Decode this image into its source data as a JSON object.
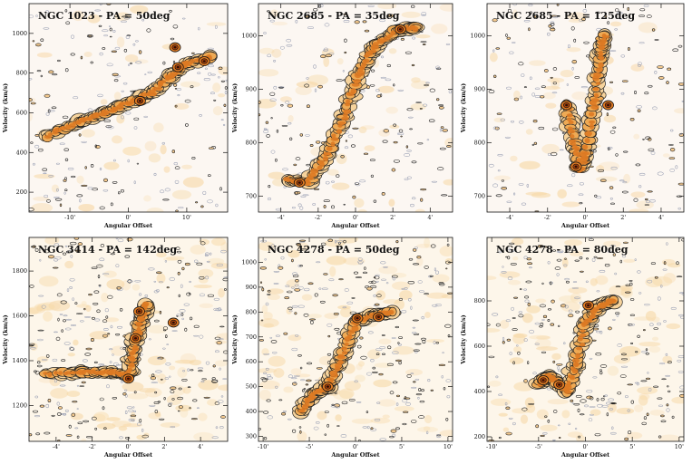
{
  "figure": {
    "xlabel": "Angular Offset",
    "ylabel": "Velocity (km/s)"
  },
  "chart_data": [
    {
      "type": "heatmap",
      "title": "NGC 1023 - PA = 50deg",
      "xlabel": "Angular Offset",
      "ylabel": "Velocity (km/s)",
      "x_ticks": [
        "-10'",
        "0'",
        "10'"
      ],
      "y_ticks": [
        200,
        400,
        600,
        800,
        1000
      ],
      "xlim": [
        -17,
        17
      ],
      "ylim": [
        100,
        1150
      ],
      "ridge": [
        [
          -14,
          480
        ],
        [
          -8,
          560
        ],
        [
          -4,
          600
        ],
        [
          0,
          650
        ],
        [
          4,
          700
        ],
        [
          7,
          780
        ],
        [
          10,
          850
        ],
        [
          14,
          880
        ]
      ],
      "peaks": [
        [
          8,
          930
        ],
        [
          8.5,
          830
        ],
        [
          13,
          860
        ],
        [
          2,
          660
        ]
      ],
      "noise_level": 0.5
    },
    {
      "type": "heatmap",
      "title": "NGC 2685 - PA = 35deg",
      "xlabel": "Angular Offset",
      "ylabel": "Velocity (km/s)",
      "x_ticks": [
        "-4'",
        "-2'",
        "0'",
        "2'",
        "4'"
      ],
      "y_ticks": [
        700,
        800,
        900,
        1000
      ],
      "xlim": [
        -5.2,
        5.2
      ],
      "ylim": [
        670,
        1060
      ],
      "ridge": [
        [
          -3.6,
          730
        ],
        [
          -2.5,
          725
        ],
        [
          -1.5,
          780
        ],
        [
          -0.6,
          850
        ],
        [
          0.2,
          930
        ],
        [
          1.0,
          980
        ],
        [
          2.2,
          1010
        ],
        [
          3.2,
          1015
        ]
      ],
      "peaks": [
        [
          -3.0,
          725
        ],
        [
          2.4,
          1012
        ]
      ],
      "noise_level": 0.5
    },
    {
      "type": "heatmap",
      "title": "NGC 2685 - PA = 125deg",
      "xlabel": "Angular Offset",
      "ylabel": "Velocity (km/s)",
      "x_ticks": [
        "-4'",
        "-2'",
        "0'",
        "2'",
        "4'"
      ],
      "y_ticks": [
        700,
        800,
        900,
        1000
      ],
      "xlim": [
        -5.2,
        5.2
      ],
      "ylim": [
        670,
        1060
      ],
      "ridge": [
        [
          -1.0,
          870
        ],
        [
          -0.6,
          800
        ],
        [
          -0.3,
          750
        ],
        [
          0.0,
          780
        ],
        [
          0.5,
          880
        ],
        [
          0.8,
          960
        ],
        [
          1.0,
          1000
        ]
      ],
      "peaks": [
        [
          -0.5,
          755
        ],
        [
          -1.0,
          870
        ],
        [
          1.2,
          870
        ]
      ],
      "noise_level": 0.5
    },
    {
      "type": "heatmap",
      "title": "NGC 3414 - PA = 142deg",
      "xlabel": "Angular Offset",
      "ylabel": "Velocity (km/s)",
      "x_ticks": [
        "-4'",
        "-2'",
        "0'",
        "2'",
        "4'"
      ],
      "y_ticks": [
        1200,
        1400,
        1600,
        1800
      ],
      "xlim": [
        -5.5,
        5.5
      ],
      "ylim": [
        1040,
        1950
      ],
      "ridge": [
        [
          -4.5,
          1340
        ],
        [
          -2.5,
          1350
        ],
        [
          -1.0,
          1350
        ],
        [
          0.0,
          1330
        ],
        [
          0.3,
          1450
        ],
        [
          0.6,
          1560
        ],
        [
          1.0,
          1650
        ]
      ],
      "peaks": [
        [
          0.0,
          1320
        ],
        [
          0.4,
          1500
        ],
        [
          0.6,
          1620
        ],
        [
          2.5,
          1570
        ]
      ],
      "noise_level": 1.0
    },
    {
      "type": "heatmap",
      "title": "NGC 4278 - PA = 50deg",
      "xlabel": "Angular Offset",
      "ylabel": "Velocity (km/s)",
      "x_ticks": [
        "-10'",
        "-5'",
        "0'",
        "5'",
        "10'"
      ],
      "y_ticks": [
        300,
        400,
        500,
        600,
        700,
        800,
        900,
        1000
      ],
      "xlim": [
        -10.5,
        10.5
      ],
      "ylim": [
        280,
        1100
      ],
      "ridge": [
        [
          -6,
          400
        ],
        [
          -4.5,
          470
        ],
        [
          -3,
          500
        ],
        [
          -1.5,
          620
        ],
        [
          0,
          760
        ],
        [
          2,
          790
        ],
        [
          4,
          800
        ]
      ],
      "peaks": [
        [
          -3.0,
          500
        ],
        [
          0.2,
          775
        ],
        [
          2.5,
          780
        ]
      ],
      "noise_level": 0.9
    },
    {
      "type": "heatmap",
      "title": "NGC 4278 - PA = 80deg",
      "xlabel": "Angular Offset",
      "ylabel": "Velocity (km/s)",
      "x_ticks": [
        "-10'",
        "-5'",
        "0'",
        "5'",
        "10'"
      ],
      "y_ticks": [
        200,
        400,
        600,
        800
      ],
      "xlim": [
        -10.5,
        10.5
      ],
      "ylim": [
        180,
        1080
      ],
      "ridge": [
        [
          -5,
          430
        ],
        [
          -4,
          470
        ],
        [
          -3,
          440
        ],
        [
          -2,
          400
        ],
        [
          -1,
          520
        ],
        [
          0,
          700
        ],
        [
          1.5,
          780
        ],
        [
          3,
          800
        ]
      ],
      "peaks": [
        [
          -4.5,
          450
        ],
        [
          -2.8,
          430
        ],
        [
          0.3,
          780
        ]
      ],
      "noise_level": 0.9
    }
  ]
}
